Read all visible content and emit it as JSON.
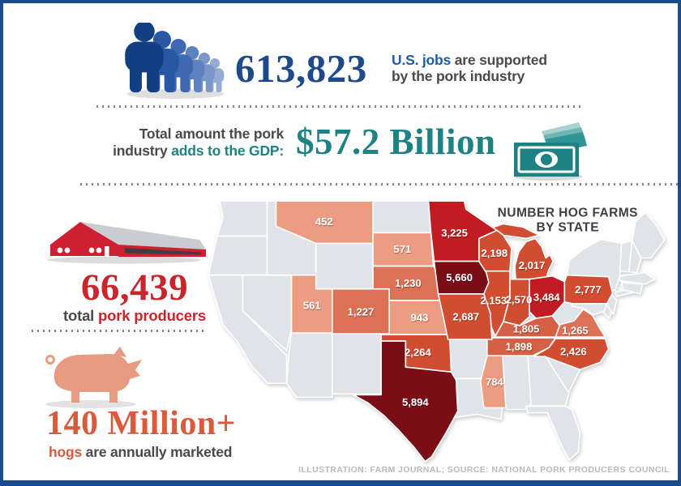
{
  "jobs": {
    "value": "613,823",
    "highlight": "U.S. jobs",
    "rest": " are supported",
    "line2": "by the pork industry"
  },
  "gdp": {
    "label_line1": "Total amount the pork",
    "label_line2_plain": "industry ",
    "label_line2_accent": "adds to the GDP:",
    "value": "$57.2 Billion"
  },
  "producers": {
    "value": "66,439",
    "label_plain": "total ",
    "label_accent": "pork producers"
  },
  "hogs": {
    "value": "140 Million+",
    "label_accent": "hogs",
    "label_plain": " are annually marketed"
  },
  "map": {
    "title1": "NUMBER HOG FARMS",
    "title2": "BY STATE",
    "no_data_fill": "#E0E4E8",
    "fills": {
      "t1": "#EC9D81",
      "t2": "#DC7154",
      "t3": "#D56044",
      "t4": "#D14E31",
      "t5": "#C01D22",
      "t6": "#7A1013"
    },
    "states": [
      {
        "id": "MT",
        "value": "452",
        "tier": "t1"
      },
      {
        "id": "UT",
        "value": "561",
        "tier": "t1"
      },
      {
        "id": "SD",
        "value": "571",
        "tier": "t1"
      },
      {
        "id": "MS",
        "value": "784",
        "tier": "t1"
      },
      {
        "id": "KS",
        "value": "943",
        "tier": "t1"
      },
      {
        "id": "CO",
        "value": "1,227",
        "tier": "t2"
      },
      {
        "id": "NE",
        "value": "1,230",
        "tier": "t2"
      },
      {
        "id": "VA",
        "value": "1,265",
        "tier": "t2"
      },
      {
        "id": "KY",
        "value": "1,805",
        "tier": "t3"
      },
      {
        "id": "TN",
        "value": "1,898",
        "tier": "t3"
      },
      {
        "id": "MI",
        "value": "2,017",
        "tier": "t4"
      },
      {
        "id": "IL",
        "value": "2,153",
        "tier": "t4"
      },
      {
        "id": "WI",
        "value": "2,198",
        "tier": "t4"
      },
      {
        "id": "OK",
        "value": "2,264",
        "tier": "t4"
      },
      {
        "id": "NC",
        "value": "2,426",
        "tier": "t4"
      },
      {
        "id": "IN",
        "value": "2,570",
        "tier": "t4"
      },
      {
        "id": "MO",
        "value": "2,687",
        "tier": "t4"
      },
      {
        "id": "PA",
        "value": "2,777",
        "tier": "t4"
      },
      {
        "id": "MN",
        "value": "3,225",
        "tier": "t5"
      },
      {
        "id": "OH",
        "value": "3,484",
        "tier": "t5"
      },
      {
        "id": "IA",
        "value": "5,660",
        "tier": "t6"
      },
      {
        "id": "TX",
        "value": "5,894",
        "tier": "t6"
      }
    ]
  },
  "footer": {
    "credit": "ILLUSTRATION: FARM JOURNAL; SOURCE: NATIONAL PORK PRODUCERS COUNCIL"
  },
  "colors": {
    "frame_blue": "#1A4A8F",
    "jobs_navy": "#1E4A8C",
    "jobs_blue": "#1D5CA8",
    "teal": "#1E8283",
    "producers_red": "#C9252B",
    "hogs_orange": "#D95B3B",
    "text_dark": "#4A4A4A",
    "footer_gray": "#B7BABD"
  },
  "chart_data": {
    "type": "heatmap",
    "subtype": "us-choropleth",
    "title": "NUMBER HOG FARMS BY STATE",
    "unit": "hog farms per state",
    "categories": [
      "MT",
      "UT",
      "SD",
      "MS",
      "KS",
      "CO",
      "NE",
      "VA",
      "KY",
      "TN",
      "MI",
      "IL",
      "WI",
      "OK",
      "NC",
      "IN",
      "MO",
      "PA",
      "MN",
      "OH",
      "IA",
      "TX"
    ],
    "values": [
      452,
      561,
      571,
      784,
      943,
      1227,
      1230,
      1265,
      1805,
      1898,
      2017,
      2153,
      2198,
      2264,
      2426,
      2570,
      2687,
      2777,
      3225,
      3484,
      5660,
      5894
    ],
    "legend_position": "none",
    "key_stats": [
      {
        "label": "U.S. jobs supported by the pork industry",
        "value": 613823
      },
      {
        "label": "Total amount the pork industry adds to the GDP",
        "value": "$57.2 Billion"
      },
      {
        "label": "Total pork producers",
        "value": 66439
      },
      {
        "label": "Hogs annually marketed",
        "value": "140 Million+"
      }
    ]
  }
}
